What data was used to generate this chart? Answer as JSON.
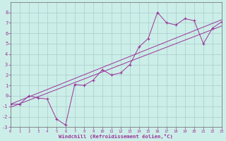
{
  "xlabel": "Windchill (Refroidissement éolien,°C)",
  "xlim": [
    0,
    23
  ],
  "ylim": [
    -3,
    9
  ],
  "xticks": [
    0,
    1,
    2,
    3,
    4,
    5,
    6,
    7,
    8,
    9,
    10,
    11,
    12,
    13,
    14,
    15,
    16,
    17,
    18,
    19,
    20,
    21,
    22,
    23
  ],
  "yticks": [
    -3,
    -2,
    -1,
    0,
    1,
    2,
    3,
    4,
    5,
    6,
    7,
    8
  ],
  "bg_color": "#cceee8",
  "line_color": "#993399",
  "grid_color": "#aacccc",
  "line1_x": [
    0,
    1,
    2,
    3,
    4,
    5,
    6,
    7,
    8,
    9,
    10,
    11,
    12,
    13,
    14,
    15,
    16,
    17,
    18,
    19,
    20,
    21,
    22,
    23
  ],
  "line1_y": [
    -0.8,
    -0.8,
    0.0,
    -0.2,
    -0.3,
    -2.2,
    -2.8,
    1.1,
    1.0,
    1.5,
    2.5,
    2.0,
    2.2,
    3.0,
    4.7,
    5.5,
    8.0,
    7.0,
    6.8,
    7.4,
    7.2,
    5.0,
    6.5,
    7.1
  ],
  "line2_x": [
    0,
    23
  ],
  "line2_y": [
    -0.8,
    7.3
  ],
  "line3_x": [
    0,
    23
  ],
  "line3_y": [
    -1.1,
    6.7
  ]
}
